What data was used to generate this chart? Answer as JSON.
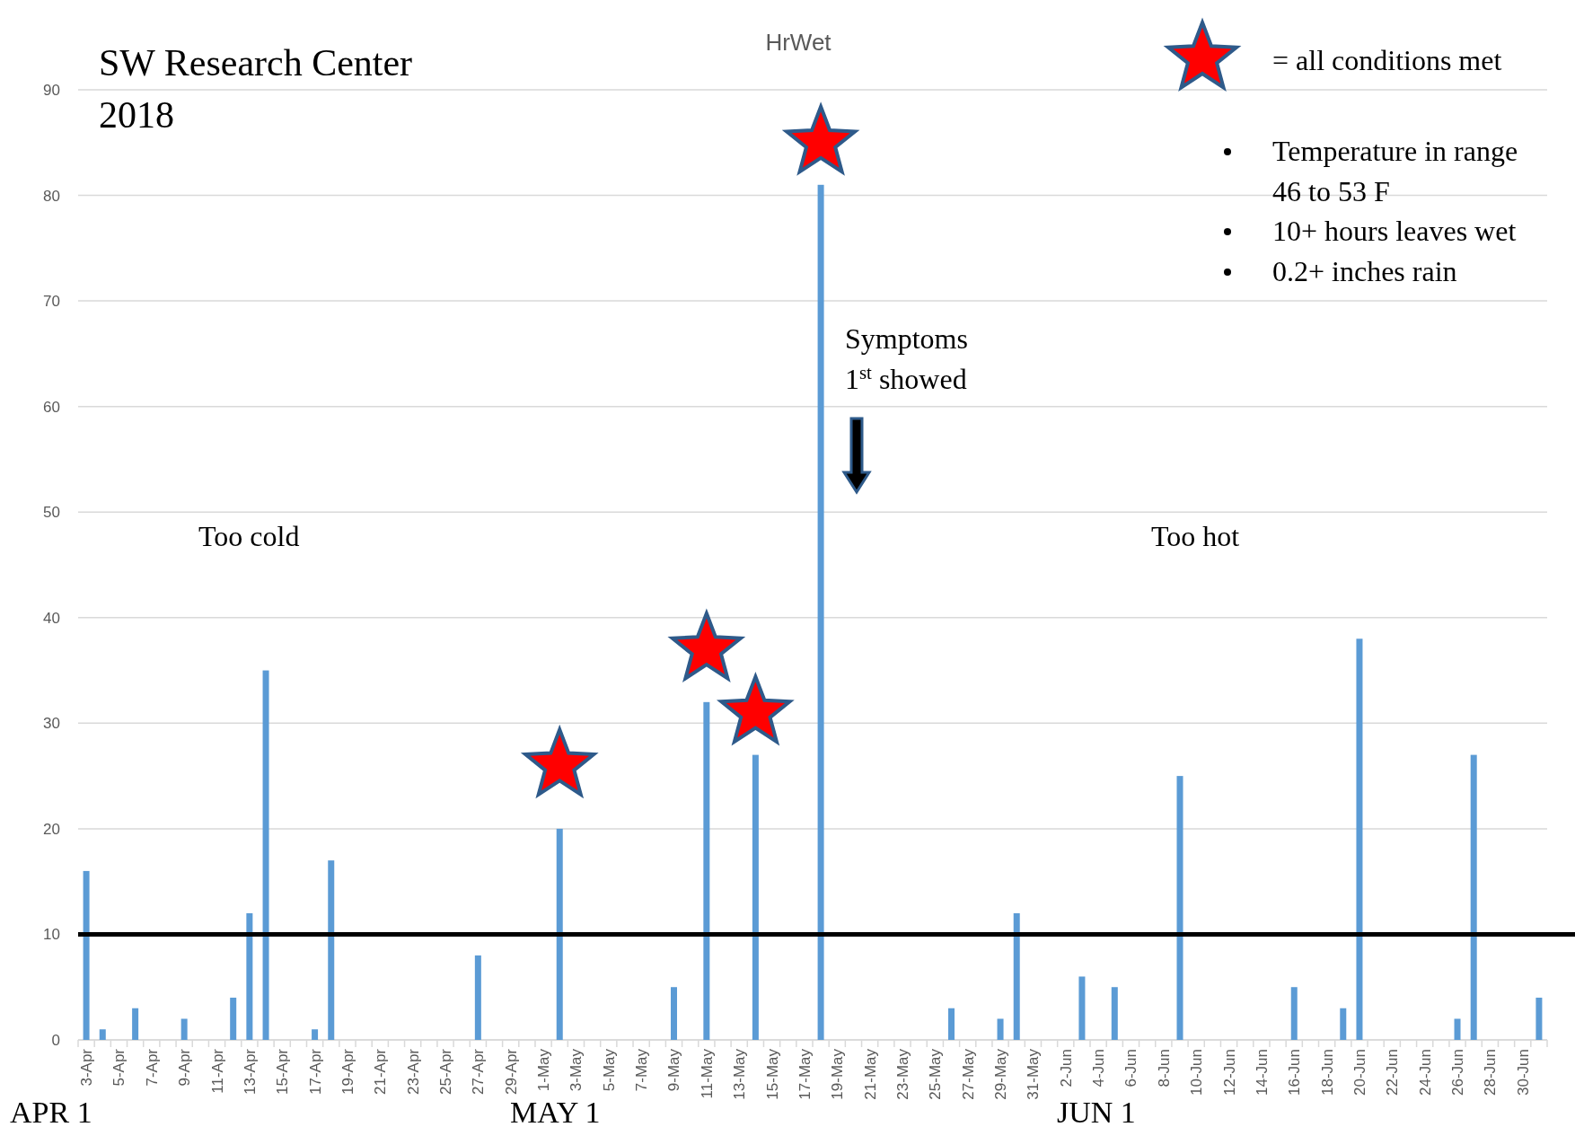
{
  "chart_data": {
    "type": "bar",
    "title": "HrWet",
    "categories": [
      "3-Apr",
      null,
      "5-Apr",
      null,
      "7-Apr",
      null,
      "9-Apr",
      null,
      "11-Apr",
      null,
      "13-Apr",
      null,
      "15-Apr",
      null,
      "17-Apr",
      null,
      "19-Apr",
      null,
      "21-Apr",
      null,
      "23-Apr",
      null,
      "25-Apr",
      null,
      "27-Apr",
      null,
      "29-Apr",
      null,
      "1-May",
      null,
      "3-May",
      null,
      "5-May",
      null,
      "7-May",
      null,
      "9-May",
      null,
      "11-May",
      null,
      "13-May",
      null,
      "15-May",
      null,
      "17-May",
      null,
      "19-May",
      null,
      "21-May",
      null,
      "23-May",
      null,
      "25-May",
      null,
      "27-May",
      null,
      "29-May",
      null,
      "31-May",
      null,
      "2-Jun",
      null,
      "4-Jun",
      null,
      "6-Jun",
      null,
      "8-Jun",
      null,
      "10-Jun",
      null,
      "12-Jun",
      null,
      "14-Jun",
      null,
      "16-Jun",
      null,
      "18-Jun",
      null,
      "20-Jun",
      null,
      "22-Jun",
      null,
      "24-Jun",
      null,
      "26-Jun",
      null,
      "28-Jun",
      null,
      "30-Jun",
      null
    ],
    "series": [
      {
        "color": "#5b9bd5",
        "values": [
          16,
          1,
          0,
          3,
          0,
          0,
          2,
          0,
          0,
          4,
          12,
          35,
          0,
          0,
          1,
          17,
          0,
          0,
          0,
          0,
          0,
          0,
          0,
          0,
          8,
          0,
          0,
          0,
          0,
          20,
          0,
          0,
          0,
          0,
          0,
          0,
          5,
          0,
          32,
          0,
          0,
          27,
          0,
          0,
          0,
          81,
          0,
          0,
          0,
          0,
          0,
          0,
          0,
          3,
          0,
          0,
          2,
          12,
          0,
          0,
          0,
          6,
          0,
          5,
          0,
          0,
          0,
          25,
          0,
          0,
          0,
          0,
          0,
          0,
          5,
          0,
          0,
          3,
          38,
          0,
          0,
          0,
          0,
          0,
          2,
          27,
          0,
          0,
          0,
          4
        ]
      },
      {
        "type": "scatter",
        "name": "= all conditions met",
        "color": "#ff0000",
        "marker": "star",
        "values": [
          null,
          null,
          null,
          null,
          null,
          null,
          null,
          null,
          null,
          null,
          null,
          null,
          null,
          null,
          null,
          null,
          null,
          null,
          null,
          null,
          null,
          null,
          null,
          null,
          null,
          null,
          null,
          null,
          null,
          26,
          null,
          null,
          null,
          null,
          null,
          null,
          null,
          null,
          37,
          null,
          null,
          31,
          null,
          null,
          null,
          85,
          null,
          null,
          null,
          null,
          null,
          null,
          null,
          null,
          null,
          null,
          null,
          null,
          null,
          null,
          null,
          null,
          null,
          null,
          null,
          null,
          null,
          null,
          null,
          null,
          null,
          null,
          null,
          null,
          null,
          null,
          null,
          null,
          null,
          null,
          null,
          null,
          null,
          null,
          null,
          null,
          null,
          null,
          null,
          null
        ]
      }
    ],
    "ylim": [
      0,
      90
    ],
    "yticks": [
      0,
      10,
      20,
      30,
      40,
      50,
      60,
      70,
      80,
      90
    ],
    "grid": "y",
    "legend": "top right",
    "ref_lines": [
      {
        "axis": "y",
        "value": 10,
        "color": "#000000"
      }
    ],
    "annotations": [
      "SW Research Center 2018",
      "Too cold",
      "Too hot",
      "Symptoms 1$^{st}$ showed",
      "Temperature in range 46 to 53 F",
      "10+ hours leaves wet",
      "0.2+ inches rain",
      "APR 1",
      "MAY 1",
      "JUN 1"
    ]
  }
}
